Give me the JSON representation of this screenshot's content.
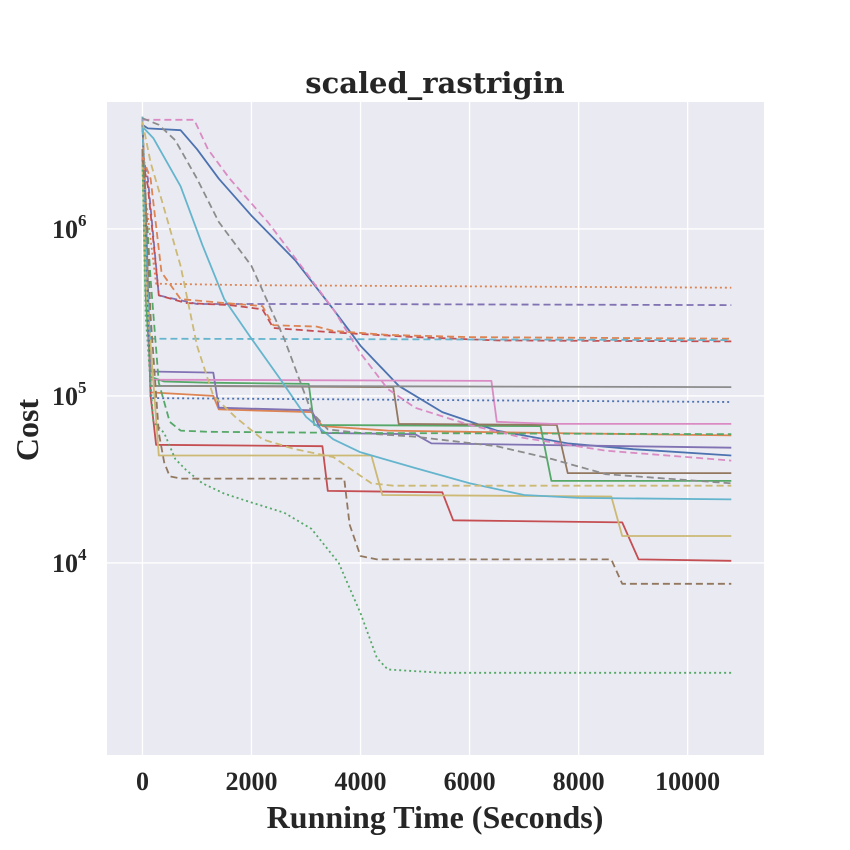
{
  "chart_data": {
    "type": "line",
    "title": "scaled_rastrigin",
    "xlabel": "Running Time (Seconds)",
    "ylabel": "Cost",
    "xlim": [
      -650,
      11400
    ],
    "ylim_log10": [
      2.85,
      6.76
    ],
    "y_scale": "log",
    "x_ticks": [
      0,
      2000,
      4000,
      6000,
      8000,
      10000
    ],
    "x_tick_labels": [
      "0",
      "2000",
      "4000",
      "6000",
      "8000",
      "10000"
    ],
    "y_ticks": [
      10000,
      100000,
      1000000
    ],
    "y_tick_labels": [
      {
        "base": "10",
        "exp": "4"
      },
      {
        "base": "10",
        "exp": "5"
      },
      {
        "base": "10",
        "exp": "6"
      }
    ],
    "grid": true,
    "background": "#eaeaf2",
    "series": [
      {
        "color": "#4c72b0",
        "dash": "solid",
        "points": [
          [
            0,
            4200000
          ],
          [
            100,
            4000000
          ],
          [
            700,
            3900000
          ],
          [
            1000,
            3000000
          ],
          [
            1400,
            2000000
          ],
          [
            2000,
            1200000
          ],
          [
            2800,
            650000
          ],
          [
            3500,
            330000
          ],
          [
            4000,
            200000
          ],
          [
            4700,
            115000
          ],
          [
            5500,
            80000
          ],
          [
            6500,
            62000
          ],
          [
            7800,
            52000
          ],
          [
            9000,
            48000
          ],
          [
            10800,
            44000
          ]
        ]
      },
      {
        "color": "#dd8452",
        "dash": "solid",
        "points": [
          [
            0,
            4700000
          ],
          [
            60,
            800000
          ],
          [
            150,
            105000
          ],
          [
            1300,
            100000
          ],
          [
            1400,
            83000
          ],
          [
            3100,
            80000
          ],
          [
            3300,
            66000
          ],
          [
            4500,
            62000
          ],
          [
            7400,
            60000
          ],
          [
            10800,
            58000
          ]
        ]
      },
      {
        "color": "#55a868",
        "dash": "solid",
        "points": [
          [
            0,
            2700000
          ],
          [
            60,
            400000
          ],
          [
            150,
            130000
          ],
          [
            400,
            122000
          ],
          [
            1200,
            120000
          ],
          [
            3050,
            118000
          ],
          [
            3150,
            67000
          ],
          [
            7300,
            66000
          ],
          [
            7500,
            31000
          ],
          [
            10800,
            31000
          ]
        ]
      },
      {
        "color": "#c44e52",
        "dash": "solid",
        "points": [
          [
            0,
            2800000
          ],
          [
            60,
            1000000
          ],
          [
            150,
            100000
          ],
          [
            250,
            51000
          ],
          [
            3300,
            50000
          ],
          [
            3400,
            27000
          ],
          [
            5500,
            26500
          ],
          [
            5700,
            18000
          ],
          [
            8800,
            17500
          ],
          [
            9100,
            10500
          ],
          [
            10800,
            10300
          ]
        ]
      },
      {
        "color": "#8172b3",
        "dash": "solid",
        "points": [
          [
            0,
            3000000
          ],
          [
            60,
            1000000
          ],
          [
            150,
            140000
          ],
          [
            1300,
            138000
          ],
          [
            1400,
            85000
          ],
          [
            3100,
            82000
          ],
          [
            3300,
            60000
          ],
          [
            5000,
            59000
          ],
          [
            5300,
            52000
          ],
          [
            10800,
            49000
          ]
        ]
      },
      {
        "color": "#937860",
        "dash": "solid",
        "points": [
          [
            0,
            4200000
          ],
          [
            60,
            1500000
          ],
          [
            150,
            115000
          ],
          [
            4600,
            113000
          ],
          [
            4700,
            68000
          ],
          [
            7600,
            67000
          ],
          [
            7800,
            34500
          ],
          [
            10800,
            34500
          ]
        ]
      },
      {
        "color": "#da8bc3",
        "dash": "solid",
        "points": [
          [
            0,
            3000000
          ],
          [
            60,
            800000
          ],
          [
            150,
            125000
          ],
          [
            6400,
            123000
          ],
          [
            6500,
            70000
          ],
          [
            7500,
            68000
          ],
          [
            10800,
            68000
          ]
        ]
      },
      {
        "color": "#8c8c8c",
        "dash": "solid",
        "points": [
          [
            0,
            4600000
          ],
          [
            60,
            1000000
          ],
          [
            150,
            115000
          ],
          [
            10800,
            113000
          ]
        ]
      },
      {
        "color": "#ccb974",
        "dash": "solid",
        "points": [
          [
            0,
            2600000
          ],
          [
            60,
            500000
          ],
          [
            300,
            44000
          ],
          [
            4200,
            44000
          ],
          [
            4400,
            25500
          ],
          [
            8600,
            25000
          ],
          [
            8800,
            14500
          ],
          [
            10800,
            14500
          ]
        ]
      },
      {
        "color": "#64b5cd",
        "dash": "solid",
        "points": [
          [
            0,
            4100000
          ],
          [
            200,
            3500000
          ],
          [
            700,
            1800000
          ],
          [
            1100,
            800000
          ],
          [
            1500,
            380000
          ],
          [
            2000,
            220000
          ],
          [
            2500,
            130000
          ],
          [
            3000,
            75000
          ],
          [
            3500,
            55000
          ],
          [
            4000,
            46000
          ],
          [
            5000,
            37000
          ],
          [
            6000,
            30000
          ],
          [
            7000,
            25500
          ],
          [
            8000,
            24500
          ],
          [
            10800,
            24000
          ]
        ]
      },
      {
        "color": "#4c72b0",
        "dash": "dotted",
        "points": [
          [
            0,
            4500000
          ],
          [
            60,
            1000000
          ],
          [
            150,
            97000
          ],
          [
            10800,
            92000
          ]
        ]
      },
      {
        "color": "#dd8452",
        "dash": "dotted",
        "points": [
          [
            0,
            4600000
          ],
          [
            60,
            1500000
          ],
          [
            250,
            470000
          ],
          [
            2000,
            460000
          ],
          [
            10800,
            445000
          ]
        ]
      },
      {
        "color": "#55a868",
        "dash": "dotted",
        "points": [
          [
            0,
            2600000
          ],
          [
            60,
            300000
          ],
          [
            200,
            70000
          ],
          [
            400,
            60000
          ],
          [
            600,
            42000
          ],
          [
            800,
            36000
          ],
          [
            1100,
            30000
          ],
          [
            1500,
            26000
          ],
          [
            2000,
            23000
          ],
          [
            2600,
            20000
          ],
          [
            3100,
            16000
          ],
          [
            3600,
            10000
          ],
          [
            4000,
            5000
          ],
          [
            4300,
            2700
          ],
          [
            4500,
            2300
          ],
          [
            5500,
            2200
          ],
          [
            10800,
            2200
          ]
        ]
      },
      {
        "color": "#8172b3",
        "dash": "dashed",
        "points": [
          [
            0,
            2800000
          ],
          [
            100,
            2000000
          ],
          [
            300,
            400000
          ],
          [
            1000,
            355000
          ],
          [
            3000,
            355000
          ],
          [
            10800,
            350000
          ]
        ]
      },
      {
        "color": "#c44e52",
        "dash": "dashed",
        "points": [
          [
            0,
            2600000
          ],
          [
            100,
            1800000
          ],
          [
            300,
            400000
          ],
          [
            800,
            360000
          ],
          [
            1600,
            350000
          ],
          [
            2200,
            330000
          ],
          [
            2400,
            255000
          ],
          [
            3500,
            240000
          ],
          [
            5000,
            225000
          ],
          [
            6500,
            215000
          ],
          [
            10800,
            212000
          ]
        ]
      },
      {
        "color": "#dd8452",
        "dash": "dashed",
        "points": [
          [
            0,
            2700000
          ],
          [
            150,
            2000000
          ],
          [
            350,
            550000
          ],
          [
            700,
            380000
          ],
          [
            1500,
            360000
          ],
          [
            2200,
            345000
          ],
          [
            2400,
            265000
          ],
          [
            3200,
            260000
          ],
          [
            3500,
            245000
          ],
          [
            4500,
            232000
          ],
          [
            6000,
            225000
          ],
          [
            10800,
            220000
          ]
        ]
      },
      {
        "color": "#64b5cd",
        "dash": "dashed",
        "points": [
          [
            0,
            4700000
          ],
          [
            60,
            1000000
          ],
          [
            150,
            220000
          ],
          [
            10800,
            216000
          ]
        ]
      },
      {
        "color": "#da8bc3",
        "dash": "dashed",
        "points": [
          [
            0,
            4500000
          ],
          [
            300,
            4500000
          ],
          [
            950,
            4500000
          ],
          [
            1200,
            3000000
          ],
          [
            1600,
            2000000
          ],
          [
            2300,
            1100000
          ],
          [
            3000,
            550000
          ],
          [
            3500,
            330000
          ],
          [
            4000,
            180000
          ],
          [
            4500,
            110000
          ],
          [
            5000,
            85000
          ],
          [
            6000,
            67000
          ],
          [
            7000,
            56000
          ],
          [
            8500,
            47000
          ],
          [
            10000,
            43000
          ],
          [
            10800,
            41000
          ]
        ]
      },
      {
        "color": "#8c8c8c",
        "dash": "dashed",
        "points": [
          [
            0,
            4600000
          ],
          [
            300,
            4200000
          ],
          [
            600,
            3400000
          ],
          [
            1000,
            2000000
          ],
          [
            1400,
            1100000
          ],
          [
            2000,
            600000
          ],
          [
            2600,
            220000
          ],
          [
            3100,
            80000
          ],
          [
            3400,
            63000
          ],
          [
            4000,
            60000
          ],
          [
            5000,
            57000
          ],
          [
            6500,
            50000
          ],
          [
            7500,
            42000
          ],
          [
            8500,
            34000
          ],
          [
            10800,
            30000
          ]
        ]
      },
      {
        "color": "#ccb974",
        "dash": "dashed",
        "points": [
          [
            0,
            4400000
          ],
          [
            150,
            2500000
          ],
          [
            350,
            1500000
          ],
          [
            700,
            600000
          ],
          [
            1000,
            200000
          ],
          [
            1300,
            100000
          ],
          [
            1700,
            75000
          ],
          [
            2200,
            55000
          ],
          [
            2800,
            48000
          ],
          [
            3500,
            43000
          ],
          [
            4200,
            30000
          ],
          [
            4600,
            29000
          ],
          [
            10800,
            29000
          ]
        ]
      },
      {
        "color": "#55a868",
        "dash": "dashed",
        "points": [
          [
            0,
            3000000
          ],
          [
            60,
            1500000
          ],
          [
            150,
            500000
          ],
          [
            300,
            120000
          ],
          [
            500,
            70000
          ],
          [
            700,
            62000
          ],
          [
            1200,
            61000
          ],
          [
            4000,
            60000
          ],
          [
            10800,
            59000
          ]
        ]
      },
      {
        "color": "#937860",
        "dash": "dashed",
        "points": [
          [
            0,
            3000000
          ],
          [
            60,
            1500000
          ],
          [
            150,
            300000
          ],
          [
            300,
            60000
          ],
          [
            400,
            40000
          ],
          [
            500,
            33000
          ],
          [
            700,
            32000
          ],
          [
            3700,
            32000
          ],
          [
            3800,
            17000
          ],
          [
            4000,
            11000
          ],
          [
            4300,
            10500
          ],
          [
            8600,
            10500
          ],
          [
            8800,
            7500
          ],
          [
            10800,
            7500
          ]
        ]
      }
    ]
  }
}
